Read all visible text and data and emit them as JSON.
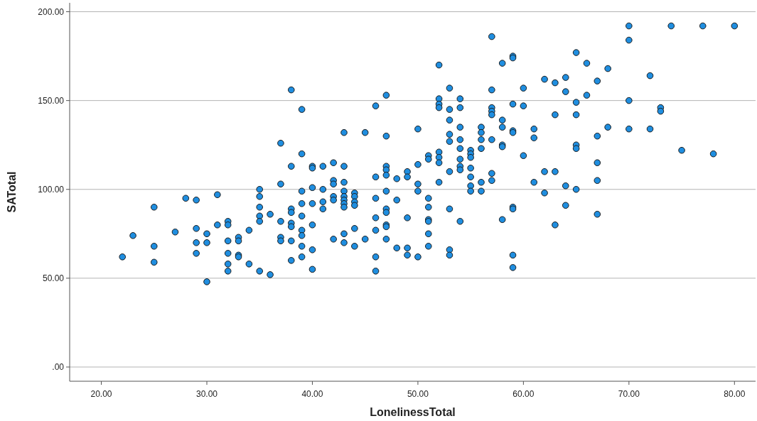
{
  "chart_data": {
    "type": "scatter",
    "xlabel": "LonelinessTotal",
    "ylabel": "SATotal",
    "x": [
      22,
      23,
      25,
      25,
      25,
      27,
      28,
      29,
      29,
      29,
      29,
      30,
      30,
      30,
      31,
      31,
      32,
      32,
      32,
      32,
      32,
      32,
      33,
      33,
      33,
      33,
      34,
      34,
      35,
      35,
      35,
      35,
      35,
      35,
      36,
      36,
      37,
      37,
      37,
      37,
      37,
      38,
      38,
      38,
      38,
      38,
      38,
      38,
      38,
      39,
      39,
      39,
      39,
      39,
      39,
      39,
      39,
      39,
      40,
      40,
      40,
      40,
      40,
      40,
      40,
      41,
      41,
      41,
      41,
      42,
      42,
      42,
      42,
      42,
      42,
      43,
      43,
      43,
      43,
      43,
      43,
      43,
      43,
      43,
      43,
      44,
      44,
      44,
      44,
      44,
      44,
      45,
      45,
      46,
      46,
      46,
      46,
      46,
      46,
      46,
      47,
      47,
      47,
      47,
      47,
      47,
      47,
      47,
      47,
      47,
      47,
      48,
      48,
      48,
      49,
      49,
      49,
      49,
      49,
      50,
      50,
      50,
      50,
      50,
      51,
      51,
      51,
      51,
      51,
      51,
      51,
      51,
      52,
      52,
      52,
      52,
      52,
      52,
      52,
      52,
      53,
      53,
      53,
      53,
      53,
      53,
      53,
      53,
      53,
      54,
      54,
      54,
      54,
      54,
      54,
      54,
      54,
      54,
      55,
      55,
      55,
      55,
      55,
      55,
      55,
      56,
      56,
      56,
      56,
      56,
      56,
      57,
      57,
      57,
      57,
      57,
      57,
      57,
      57,
      58,
      58,
      58,
      58,
      58,
      58,
      59,
      59,
      59,
      59,
      59,
      59,
      59,
      59,
      59,
      60,
      60,
      60,
      61,
      61,
      61,
      62,
      62,
      62,
      63,
      63,
      63,
      63,
      64,
      64,
      64,
      64,
      65,
      65,
      65,
      65,
      65,
      65,
      66,
      66,
      67,
      67,
      67,
      67,
      67,
      68,
      68,
      70,
      70,
      70,
      70,
      72,
      72,
      73,
      73,
      74,
      75,
      77,
      78,
      80
    ],
    "values": [
      62,
      74,
      90,
      68,
      59,
      76,
      95,
      94,
      78,
      70,
      64,
      75,
      70,
      48,
      97,
      80,
      82,
      80,
      71,
      64,
      58,
      54,
      73,
      71,
      63,
      62,
      77,
      58,
      100,
      96,
      90,
      85,
      82,
      54,
      86,
      52,
      126,
      103,
      82,
      73,
      71,
      156,
      113,
      89,
      87,
      81,
      79,
      71,
      60,
      145,
      120,
      99,
      92,
      85,
      77,
      74,
      68,
      62,
      113,
      112,
      101,
      92,
      80,
      66,
      55,
      113,
      100,
      93,
      89,
      115,
      105,
      103,
      96,
      94,
      72,
      132,
      113,
      104,
      99,
      96,
      94,
      92,
      90,
      75,
      70,
      98,
      96,
      93,
      91,
      78,
      68,
      132,
      72,
      147,
      107,
      95,
      84,
      77,
      62,
      54,
      153,
      130,
      113,
      111,
      108,
      99,
      89,
      87,
      80,
      79,
      72,
      106,
      94,
      67,
      110,
      107,
      84,
      67,
      63,
      134,
      103,
      99,
      114,
      62,
      119,
      117,
      95,
      90,
      83,
      82,
      75,
      68,
      170,
      151,
      148,
      146,
      121,
      118,
      115,
      104,
      157,
      145,
      139,
      131,
      127,
      110,
      89,
      66,
      63,
      151,
      146,
      135,
      128,
      123,
      117,
      113,
      111,
      82,
      122,
      120,
      118,
      112,
      107,
      102,
      99,
      135,
      132,
      128,
      123,
      104,
      99,
      186,
      156,
      146,
      144,
      142,
      128,
      109,
      105,
      171,
      139,
      135,
      125,
      124,
      83,
      175,
      174,
      148,
      133,
      132,
      90,
      89,
      63,
      56,
      157,
      147,
      119,
      134,
      129,
      104,
      162,
      110,
      98,
      160,
      142,
      110,
      80,
      163,
      155,
      102,
      91,
      177,
      149,
      142,
      125,
      123,
      100,
      171,
      153,
      161,
      130,
      115,
      105,
      86,
      168,
      135,
      192,
      184,
      150,
      134,
      164,
      134,
      146,
      144,
      192,
      122,
      192,
      120,
      192
    ],
    "color": "#1f8ee0",
    "marker": "circle",
    "xlim": [
      17,
      82
    ],
    "ylim": [
      -8,
      205
    ],
    "xticks": [
      {
        "value": 20,
        "label": "20.00"
      },
      {
        "value": 30,
        "label": "30.00"
      },
      {
        "value": 40,
        "label": "40.00"
      },
      {
        "value": 50,
        "label": "50.00"
      },
      {
        "value": 60,
        "label": "60.00"
      },
      {
        "value": 70,
        "label": "70.00"
      },
      {
        "value": 80,
        "label": "80.00"
      }
    ],
    "yticks": [
      {
        "value": 0,
        "label": ".00"
      },
      {
        "value": 50,
        "label": "50.00"
      },
      {
        "value": 100,
        "label": "100.00"
      },
      {
        "value": 150,
        "label": "150.00"
      },
      {
        "value": 200,
        "label": "200.00"
      }
    ],
    "grid": "y"
  }
}
